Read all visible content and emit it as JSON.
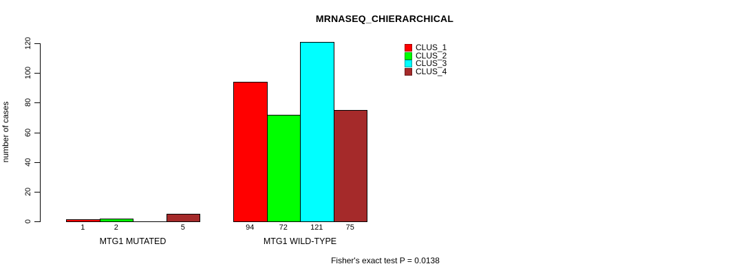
{
  "title": "MRNASEQ_CHIERARCHICAL",
  "caption": "Fisher's exact test P = 0.0138",
  "chart_data": {
    "type": "bar",
    "title": "MRNASEQ_CHIERARCHICAL",
    "xlabel": "",
    "ylabel": "number of cases",
    "ylim": [
      0,
      121
    ],
    "yticks": [
      0,
      20,
      40,
      60,
      80,
      100,
      120
    ],
    "grid": false,
    "legend_position": "top-right",
    "categories": [
      "MTG1 MUTATED",
      "MTG1 WILD-TYPE"
    ],
    "series": [
      {
        "name": "CLUS_1",
        "color": "#ff0000",
        "values": [
          1,
          94
        ]
      },
      {
        "name": "CLUS_2",
        "color": "#00ff00",
        "values": [
          2,
          72
        ]
      },
      {
        "name": "CLUS_3",
        "color": "#00ffff",
        "values": [
          0,
          121
        ]
      },
      {
        "name": "CLUS_4",
        "color": "#a52a2a",
        "values": [
          5,
          75
        ]
      }
    ],
    "bar_value_labels": [
      [
        "1",
        "2",
        "",
        "5"
      ],
      [
        "94",
        "72",
        "121",
        "75"
      ]
    ],
    "annotation": "Fisher's exact test P = 0.0138"
  },
  "legend": {
    "items": [
      {
        "label": "CLUS_1",
        "color": "#ff0000"
      },
      {
        "label": "CLUS_2",
        "color": "#00ff00"
      },
      {
        "label": "CLUS_3",
        "color": "#00ffff"
      },
      {
        "label": "CLUS_4",
        "color": "#a52a2a"
      }
    ]
  }
}
